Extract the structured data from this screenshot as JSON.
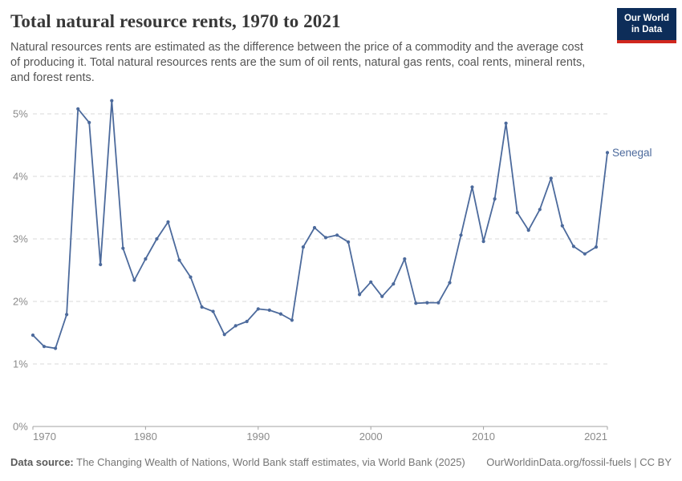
{
  "header": {
    "title": "Total natural resource rents, 1970 to 2021",
    "logo": {
      "line1": "Our World",
      "line2": "in Data"
    }
  },
  "subtitle": "Natural resources rents are estimated as the difference between the price of a commodity and the average cost of producing it. Total natural resources rents are the sum of oil rents, natural gas rents, coal rents, mineral rents, and forest rents.",
  "chart_data": {
    "type": "line",
    "title": "Total natural resource rents, 1970 to 2021",
    "unit": "%",
    "x": [
      1970,
      1971,
      1972,
      1973,
      1974,
      1975,
      1976,
      1977,
      1978,
      1979,
      1980,
      1981,
      1982,
      1983,
      1984,
      1985,
      1986,
      1987,
      1988,
      1989,
      1990,
      1991,
      1992,
      1993,
      1994,
      1995,
      1996,
      1997,
      1998,
      1999,
      2000,
      2001,
      2002,
      2003,
      2004,
      2005,
      2006,
      2007,
      2008,
      2009,
      2010,
      2011,
      2012,
      2013,
      2014,
      2015,
      2016,
      2017,
      2018,
      2019,
      2020,
      2021
    ],
    "series": [
      {
        "name": "Senegal",
        "color": "#4c6a9c",
        "values": [
          1.46,
          1.28,
          1.25,
          1.79,
          5.08,
          4.86,
          2.59,
          5.21,
          2.85,
          2.34,
          2.68,
          3.0,
          3.27,
          2.66,
          2.39,
          1.91,
          1.84,
          1.47,
          1.61,
          1.68,
          1.88,
          1.86,
          1.8,
          1.7,
          2.87,
          3.18,
          3.02,
          3.06,
          2.95,
          2.11,
          2.31,
          2.08,
          2.28,
          2.68,
          1.97,
          1.98,
          1.98,
          2.3,
          3.06,
          3.83,
          2.96,
          3.64,
          4.85,
          3.42,
          3.14,
          3.47,
          3.97,
          3.21,
          2.88,
          2.76,
          2.87,
          4.38
        ]
      }
    ],
    "ylim": [
      0,
      5.5
    ],
    "grid": true,
    "legend_position": "end-of-line",
    "y_ticks": [
      {
        "value": 0,
        "label": "0%"
      },
      {
        "value": 1,
        "label": "1%"
      },
      {
        "value": 2,
        "label": "2%"
      },
      {
        "value": 3,
        "label": "3%"
      },
      {
        "value": 4,
        "label": "4%"
      },
      {
        "value": 5,
        "label": "5%"
      }
    ],
    "x_ticks": [
      {
        "year": 1970,
        "label": "1970",
        "anchor": "start"
      },
      {
        "year": 1980,
        "label": "1980",
        "anchor": "middle"
      },
      {
        "year": 1990,
        "label": "1990",
        "anchor": "middle"
      },
      {
        "year": 2000,
        "label": "2000",
        "anchor": "middle"
      },
      {
        "year": 2010,
        "label": "2010",
        "anchor": "middle"
      },
      {
        "year": 2021,
        "label": "2021",
        "anchor": "end"
      }
    ],
    "colors": {
      "line": "#4c6a9c",
      "grid": "#d9d9d9",
      "axis": "#a3a3a3",
      "tick_text": "#8b8b8b"
    }
  },
  "footer": {
    "datasource_label": "Data source:",
    "datasource": "The Changing Wealth of Nations, World Bank staff estimates, via World Bank (2025)",
    "link": "OurWorldinData.org/fossil-fuels | CC BY"
  }
}
